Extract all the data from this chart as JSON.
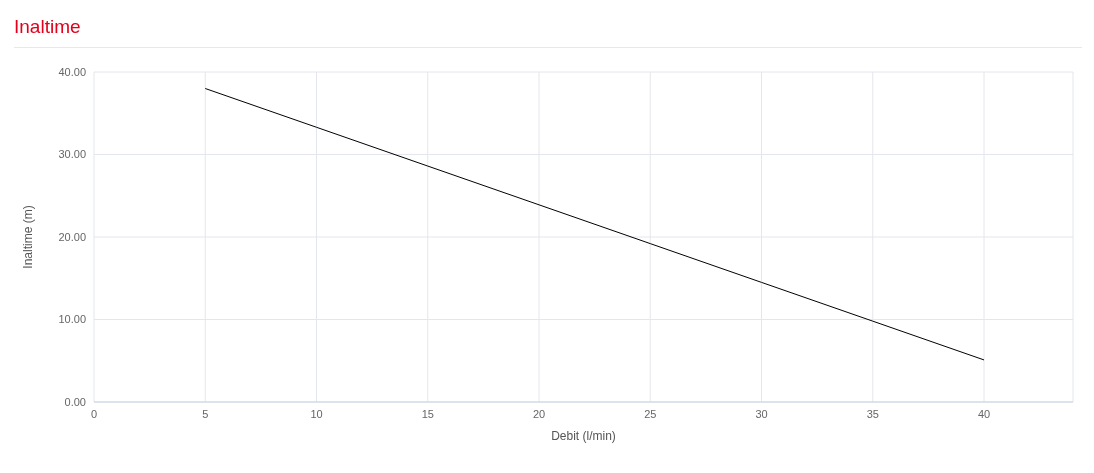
{
  "chart_data": {
    "type": "line",
    "title": "Inaltime",
    "xlabel": "Debit (l/min)",
    "ylabel": "Inaltime (m)",
    "x": [
      5,
      10,
      15,
      20,
      25,
      30,
      35,
      40
    ],
    "series": [
      {
        "color": "#000000",
        "values": [
          38,
          33.3,
          28.6,
          23.9,
          19.2,
          14.5,
          9.8,
          5.1
        ]
      }
    ],
    "xlim": [
      0,
      44
    ],
    "xticks": [
      0,
      5,
      10,
      15,
      20,
      25,
      30,
      35,
      40
    ],
    "ylim": [
      0,
      40
    ],
    "yticks": [
      {
        "value": 0,
        "label": "0.00"
      },
      {
        "value": 10,
        "label": "10.00"
      },
      {
        "value": 20,
        "label": "20.00"
      },
      {
        "value": 30,
        "label": "30.00"
      },
      {
        "value": 40,
        "label": "40.00"
      }
    ],
    "grid": true,
    "marker": "none",
    "line_style": "solid",
    "legend": false
  }
}
